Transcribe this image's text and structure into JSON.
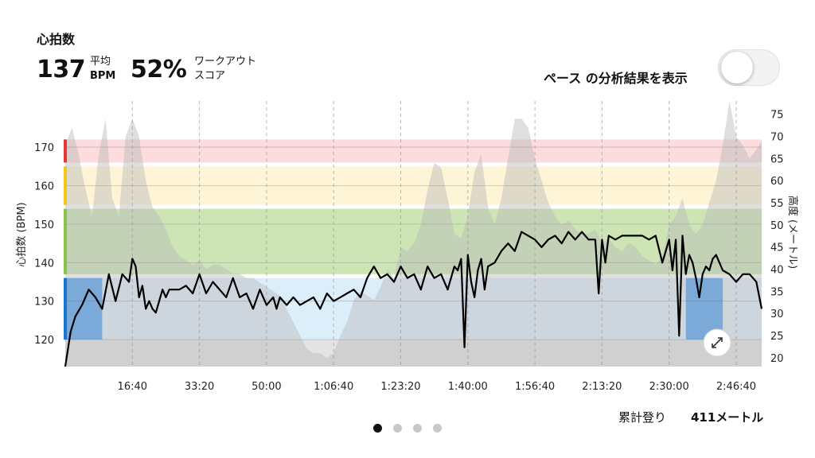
{
  "header": {
    "title": "心拍数",
    "hr_value": "137",
    "hr_label_1": "平均",
    "hr_label_2": "BPM",
    "score_value": "52%",
    "score_label_1": "ワークアウト",
    "score_label_2": "スコア"
  },
  "pace_toggle": {
    "label": "ペース の分析結果を表示",
    "on": false
  },
  "footer": {
    "climb_label": "累計登り",
    "climb_value": "411メートル"
  },
  "pagination": {
    "count": 4,
    "active": 0
  },
  "colors": {
    "zone_red": "#fcdcdc",
    "zone_yellow": "#fdf5d6",
    "zone_green": "#cde5b4",
    "zone_blue": "#dceefa",
    "zone_gray": "#e4e4e4",
    "marker_red": "#e53935",
    "marker_yellow": "#f5c518",
    "marker_green": "#8bc34a",
    "marker_blue": "#1976d2",
    "elevation_fill": "#b8b8b8",
    "line": "#000000"
  },
  "chart_data": {
    "type": "line",
    "title": "",
    "xlabel": "",
    "ylabel": "心拍数 (BPM)",
    "y2label": "高度 (メートル)",
    "x_range_sec": [
      0,
      10380
    ],
    "ylim": [
      113,
      182
    ],
    "y2lim": [
      18,
      78
    ],
    "x_ticks": [
      {
        "t": 1000,
        "label": "16:40"
      },
      {
        "t": 2000,
        "label": "33:20"
      },
      {
        "t": 3000,
        "label": "50:00"
      },
      {
        "t": 4000,
        "label": "1:06:40"
      },
      {
        "t": 5000,
        "label": "1:23:20"
      },
      {
        "t": 6000,
        "label": "1:40:00"
      },
      {
        "t": 7000,
        "label": "1:56:40"
      },
      {
        "t": 8000,
        "label": "2:13:20"
      },
      {
        "t": 9000,
        "label": "2:30:00"
      },
      {
        "t": 10000,
        "label": "2:46:40"
      }
    ],
    "y_ticks": [
      {
        "v": 120,
        "label": "120"
      },
      {
        "v": 130,
        "label": "130"
      },
      {
        "v": 140,
        "label": "140"
      },
      {
        "v": 150,
        "label": "150"
      },
      {
        "v": 160,
        "label": "160"
      },
      {
        "v": 170,
        "label": "170"
      }
    ],
    "y2_ticks": [
      {
        "v": 20,
        "label": "20"
      },
      {
        "v": 25,
        "label": "25"
      },
      {
        "v": 30,
        "label": "30"
      },
      {
        "v": 35,
        "label": "35"
      },
      {
        "v": 40,
        "label": "40"
      },
      {
        "v": 45,
        "label": "45"
      },
      {
        "v": 50,
        "label": "50"
      },
      {
        "v": 55,
        "label": "55"
      },
      {
        "v": 60,
        "label": "60"
      },
      {
        "v": 65,
        "label": "65"
      },
      {
        "v": 70,
        "label": "70"
      },
      {
        "v": 75,
        "label": "75"
      }
    ],
    "zones": [
      {
        "name": "red",
        "min": 166,
        "max": 172
      },
      {
        "name": "yellow",
        "min": 155,
        "max": 165
      },
      {
        "name": "green",
        "min": 137,
        "max": 154
      },
      {
        "name": "blue",
        "min": 120,
        "max": 136
      },
      {
        "name": "gray",
        "min": 113,
        "max": 120
      }
    ],
    "series": [
      {
        "axis": "heart_rate",
        "t": [
          0,
          80,
          150,
          250,
          350,
          450,
          550,
          650,
          750,
          850,
          950,
          1000,
          1050,
          1100,
          1150,
          1200,
          1250,
          1300,
          1350,
          1400,
          1450,
          1500,
          1550,
          1600,
          1700,
          1800,
          1900,
          2000,
          2100,
          2200,
          2300,
          2400,
          2500,
          2600,
          2700,
          2800,
          2900,
          3000,
          3100,
          3150,
          3200,
          3300,
          3400,
          3500,
          3600,
          3700,
          3800,
          3900,
          4000,
          4100,
          4200,
          4300,
          4400,
          4500,
          4600,
          4700,
          4800,
          4900,
          5000,
          5100,
          5200,
          5300,
          5400,
          5500,
          5600,
          5700,
          5800,
          5850,
          5900,
          5950,
          6000,
          6050,
          6100,
          6150,
          6200,
          6250,
          6300,
          6400,
          6500,
          6600,
          6700,
          6800,
          6900,
          7000,
          7100,
          7200,
          7300,
          7400,
          7500,
          7600,
          7700,
          7800,
          7900,
          7950,
          8000,
          8050,
          8100,
          8200,
          8300,
          8400,
          8500,
          8600,
          8700,
          8800,
          8900,
          9000,
          9050,
          9100,
          9150,
          9200,
          9250,
          9300,
          9350,
          9400,
          9450,
          9500,
          9550,
          9600,
          9650,
          9700,
          9800,
          9900,
          10000,
          10100,
          10200,
          10300,
          10380
        ],
        "values": [
          113,
          122,
          126,
          129,
          133,
          131,
          128,
          137,
          130,
          137,
          135,
          141,
          139,
          131,
          134,
          128,
          130,
          128,
          127,
          130,
          133,
          131,
          133,
          133,
          133,
          134,
          132,
          137,
          132,
          135,
          133,
          131,
          136,
          131,
          132,
          128,
          133,
          129,
          131,
          128,
          131,
          129,
          131,
          129,
          130,
          131,
          128,
          132,
          130,
          131,
          132,
          133,
          131,
          136,
          139,
          136,
          137,
          135,
          139,
          136,
          137,
          133,
          139,
          136,
          137,
          133,
          139,
          138,
          141,
          118,
          142,
          135,
          131,
          138,
          141,
          133,
          139,
          140,
          143,
          145,
          143,
          148,
          147,
          146,
          144,
          146,
          147,
          145,
          148,
          146,
          148,
          146,
          146,
          132,
          146,
          140,
          147,
          146,
          147,
          147,
          147,
          147,
          146,
          147,
          140,
          146,
          138,
          146,
          121,
          147,
          137,
          142,
          140,
          136,
          131,
          137,
          139,
          138,
          141,
          142,
          138,
          137,
          135,
          137,
          137,
          135,
          128
        ]
      },
      {
        "axis": "altitude",
        "t": [
          0,
          100,
          200,
          300,
          400,
          500,
          600,
          700,
          800,
          900,
          1000,
          1100,
          1200,
          1300,
          1400,
          1500,
          1600,
          1700,
          1800,
          1900,
          2000,
          2100,
          2200,
          2300,
          2400,
          2500,
          2600,
          2700,
          2800,
          2900,
          3000,
          3100,
          3200,
          3300,
          3400,
          3500,
          3600,
          3700,
          3800,
          3900,
          4000,
          4100,
          4200,
          4300,
          4400,
          4500,
          4600,
          4700,
          4800,
          4900,
          5000,
          5100,
          5200,
          5300,
          5400,
          5500,
          5600,
          5700,
          5800,
          5900,
          6000,
          6100,
          6200,
          6300,
          6400,
          6500,
          6600,
          6700,
          6800,
          6900,
          7000,
          7100,
          7200,
          7300,
          7400,
          7500,
          7600,
          7700,
          7800,
          7900,
          8000,
          8100,
          8200,
          8300,
          8400,
          8500,
          8600,
          8700,
          8800,
          8900,
          9000,
          9100,
          9200,
          9300,
          9400,
          9500,
          9600,
          9700,
          9800,
          9900,
          10000,
          10100,
          10200,
          10300,
          10380
        ],
        "values": [
          68,
          72,
          66,
          58,
          52,
          66,
          74,
          56,
          52,
          70,
          74,
          70,
          60,
          54,
          52,
          49,
          45,
          43,
          42,
          41,
          42,
          40,
          41,
          41,
          40,
          39,
          39,
          38,
          38,
          37,
          36,
          35,
          34,
          31,
          28,
          25,
          22,
          21,
          21,
          20,
          21,
          25,
          28,
          33,
          35,
          34,
          33,
          36,
          40,
          38,
          45,
          44,
          46,
          50,
          58,
          64,
          63,
          56,
          48,
          47,
          52,
          62,
          66,
          54,
          50,
          56,
          65,
          74,
          74,
          72,
          65,
          60,
          55,
          52,
          50,
          51,
          49,
          48,
          48,
          49,
          46,
          47,
          45,
          44,
          46,
          45,
          43,
          42,
          41,
          43,
          50,
          52,
          56,
          50,
          48,
          50,
          55,
          60,
          68,
          78,
          70,
          68,
          65,
          67,
          69
        ]
      }
    ]
  }
}
